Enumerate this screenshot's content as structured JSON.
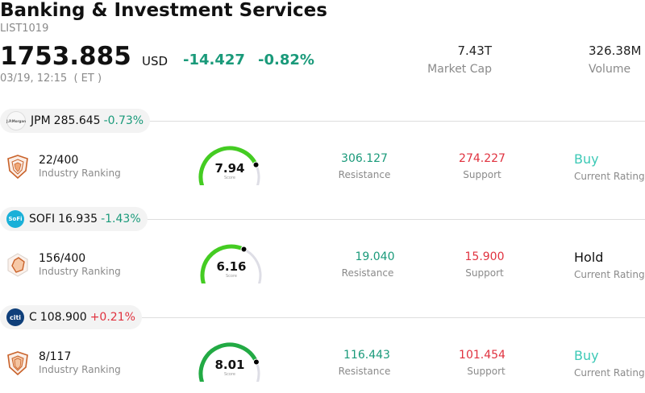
{
  "header": {
    "title": "Banking & Investment Services",
    "code": "LIST1019",
    "price": "1753.885",
    "currency": "USD",
    "change": "-14.427",
    "change_pct": "-0.82%",
    "time": "03/19, 12:15  ( ET )",
    "market_cap_value": "7.43T",
    "market_cap_label": "Market Cap",
    "volume_value": "326.38M",
    "volume_label": "Volume"
  },
  "labels": {
    "industry_ranking": "Industry Ranking",
    "resistance": "Resistance",
    "support": "Support",
    "current_rating": "Current Rating",
    "score": "Score"
  },
  "stocks": [
    {
      "ticker": "JPM",
      "price": "285.645",
      "change_pct": "-0.73%",
      "logo": "J.P.Morgan",
      "rank": "22/400",
      "score": "7.94",
      "score_value": 7.94,
      "resistance": "306.127",
      "support": "274.227",
      "rating": "Buy",
      "gauge_color": "#44cc22"
    },
    {
      "ticker": "SOFI",
      "price": "16.935",
      "change_pct": "-1.43%",
      "logo": "SoFi",
      "rank": "156/400",
      "score": "6.16",
      "score_value": 6.16,
      "resistance": "19.040",
      "support": "15.900",
      "rating": "Hold",
      "gauge_color": "#44cc22"
    },
    {
      "ticker": "C",
      "price": "108.900",
      "change_pct": "+0.21%",
      "logo": "citi",
      "rank": "8/117",
      "score": "8.01",
      "score_value": 8.01,
      "resistance": "116.443",
      "support": "101.454",
      "rating": "Buy",
      "gauge_color": "#22aa44"
    }
  ],
  "colors": {
    "down": "#1a9a7a",
    "up": "#e0323f",
    "buy": "#3cc9b6",
    "shield": "#c9622a"
  },
  "icons": {
    "ranking": "shield-radar-icon",
    "logos": [
      "jpmorgan-logo-icon",
      "sofi-logo-icon",
      "citi-logo-icon"
    ]
  }
}
